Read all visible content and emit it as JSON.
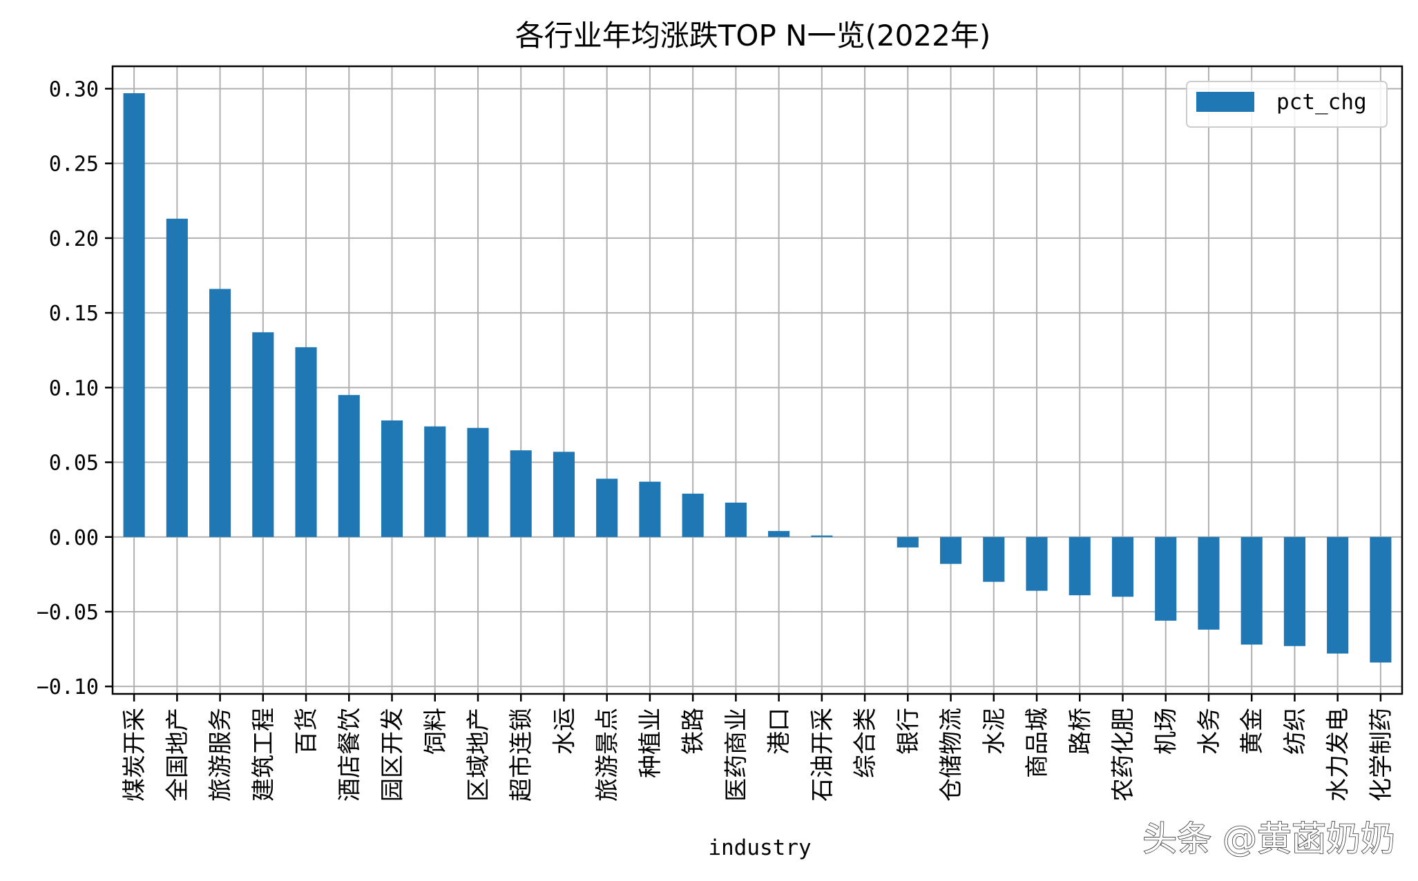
{
  "watermark": "头条 @黄菡奶奶",
  "chart_data": {
    "type": "bar",
    "title": "各行业年均涨跌TOP N一览(2022年)",
    "xlabel": "industry",
    "ylabel": "",
    "ylim": [
      -0.105,
      0.315
    ],
    "yticks": [
      0.3,
      0.25,
      0.2,
      0.15,
      0.1,
      0.05,
      0.0,
      -0.05,
      -0.1
    ],
    "ytick_labels": [
      "0.30",
      "0.25",
      "0.20",
      "0.15",
      "0.10",
      "0.05",
      "0.00",
      "−0.05",
      "−0.10"
    ],
    "grid": true,
    "legend_position": "top-right",
    "bar_color": "#1f77b4",
    "categories": [
      "煤炭开采",
      "全国地产",
      "旅游服务",
      "建筑工程",
      "百货",
      "酒店餐饮",
      "园区开发",
      "饲料",
      "区域地产",
      "超市连锁",
      "水运",
      "旅游景点",
      "种植业",
      "铁路",
      "医药商业",
      "港口",
      "石油开采",
      "综合类",
      "银行",
      "仓储物流",
      "水泥",
      "商品城",
      "路桥",
      "农药化肥",
      "机场",
      "水务",
      "黄金",
      "纺织",
      "水力发电",
      "化学制药"
    ],
    "series": [
      {
        "name": "pct_chg",
        "values": [
          0.297,
          0.213,
          0.166,
          0.137,
          0.127,
          0.095,
          0.078,
          0.074,
          0.073,
          0.058,
          0.057,
          0.039,
          0.037,
          0.029,
          0.023,
          0.004,
          0.001,
          0.0,
          -0.007,
          -0.018,
          -0.03,
          -0.036,
          -0.039,
          -0.04,
          -0.056,
          -0.062,
          -0.072,
          -0.073,
          -0.078,
          -0.084
        ]
      }
    ]
  }
}
